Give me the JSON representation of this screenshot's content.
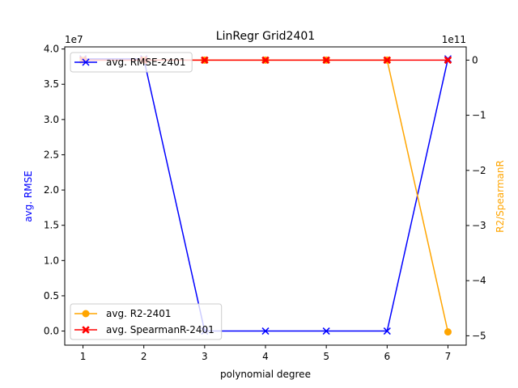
{
  "chart_data": {
    "type": "line",
    "title": "LinRegr Grid2401",
    "xlabel": "polynomial degree",
    "ylabel_left": "avg. RMSE",
    "ylabel_right": "R2/SpearmanR",
    "x": [
      1,
      2,
      3,
      4,
      5,
      6,
      7
    ],
    "xlim": [
      0.7,
      7.3
    ],
    "left_axis": {
      "offset_text": "1e7",
      "multiplier": 10000000,
      "ylim": [
        -2.0,
        40.3
      ],
      "ticks": [
        0.0,
        0.5,
        1.0,
        1.5,
        2.0,
        2.5,
        3.0,
        3.5,
        4.0
      ],
      "tick_labels": [
        "0.0",
        "0.5",
        "1.0",
        "1.5",
        "2.0",
        "2.5",
        "3.0",
        "3.5",
        "4.0"
      ],
      "color": "#0000ff"
    },
    "right_axis": {
      "offset_text": "1e11",
      "multiplier": 100000000000,
      "ylim": [
        -5.17,
        0.24
      ],
      "ticks": [
        0,
        -1,
        -2,
        -3,
        -4,
        -5
      ],
      "tick_labels": [
        "0",
        "−1",
        "−2",
        "−3",
        "−4",
        "−5"
      ],
      "color": "#ffa500"
    },
    "series": [
      {
        "name": "avg. RMSE-2401",
        "axis": "left",
        "color": "#0000ff",
        "marker": "x",
        "values": [
          38.6,
          38.6,
          0.0,
          0.0,
          0.0,
          0.0,
          38.6
        ]
      },
      {
        "name": "avg. R2-2401",
        "axis": "right",
        "color": "#ffa500",
        "marker": "o",
        "values": [
          0,
          0,
          0,
          0,
          0,
          0,
          -4.93
        ]
      },
      {
        "name": "avg. SpearmanR-2401",
        "axis": "right",
        "color": "#ff0000",
        "marker": "X",
        "values": [
          0,
          0,
          0,
          0,
          0,
          0,
          0
        ]
      }
    ],
    "legends": [
      {
        "placement": "upper-left",
        "entries": [
          0
        ]
      },
      {
        "placement": "lower-left",
        "entries": [
          1,
          2
        ]
      }
    ],
    "grid": false
  }
}
